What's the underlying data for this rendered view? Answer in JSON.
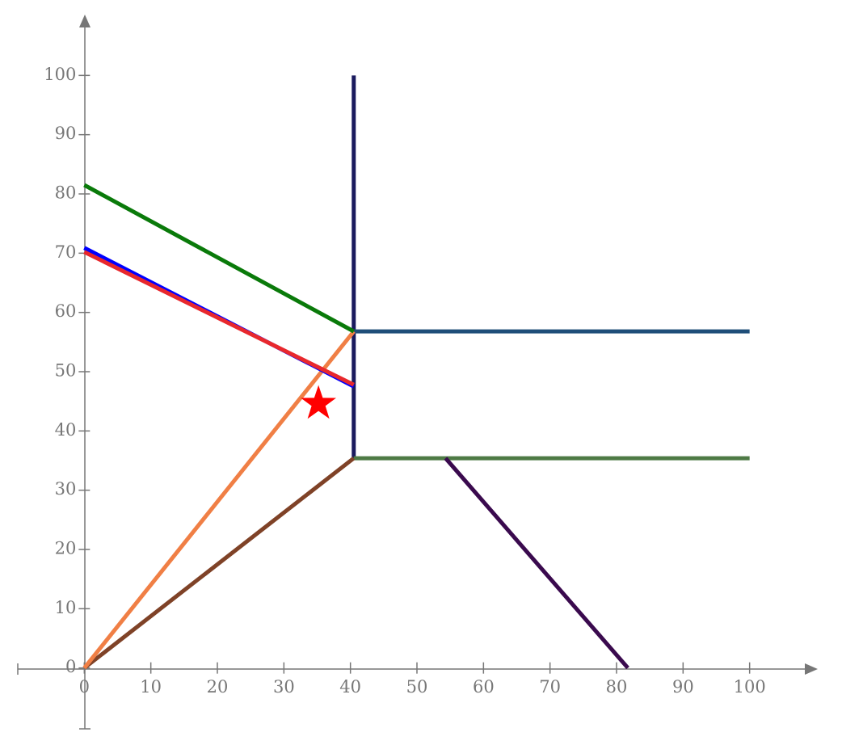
{
  "chart_data": {
    "type": "segments",
    "xlim": [
      -10,
      110
    ],
    "ylim": [
      -10,
      110
    ],
    "xticks": [
      0,
      10,
      20,
      30,
      40,
      50,
      60,
      70,
      80,
      90,
      100
    ],
    "yticks": [
      0,
      10,
      20,
      30,
      40,
      50,
      60,
      70,
      80,
      90,
      100
    ],
    "series": [
      {
        "color": "#1a1a5e",
        "x": [
          40.5,
          40.5
        ],
        "values": [
          35.4,
          100
        ]
      },
      {
        "color": "#1f4e79",
        "x": [
          40.5,
          100
        ],
        "values": [
          56.8,
          56.8
        ]
      },
      {
        "color": "#4e7a45",
        "x": [
          40.5,
          100
        ],
        "values": [
          35.4,
          35.4
        ]
      },
      {
        "color": "#3a0a4e",
        "x": [
          54.3,
          81.7
        ],
        "values": [
          35.4,
          0
        ]
      },
      {
        "color": "#7f4227",
        "x": [
          0,
          40.5
        ],
        "values": [
          0,
          35.4
        ]
      },
      {
        "color": "#f07f45",
        "x": [
          0,
          40.5
        ],
        "values": [
          0,
          56.8
        ]
      },
      {
        "color": "#0a7a0a",
        "x": [
          0,
          40.5
        ],
        "values": [
          81.5,
          56.8
        ]
      },
      {
        "color": "#0000ff",
        "x": [
          0,
          40.5
        ],
        "values": [
          70.9,
          47.5
        ]
      },
      {
        "color": "#e8282d",
        "x": [
          0,
          40.5
        ],
        "values": [
          70.2,
          47.8
        ]
      }
    ],
    "points": [
      {
        "x": 35.2,
        "y": 44.6,
        "color": "#ff0000",
        "marker": "star"
      }
    ]
  }
}
